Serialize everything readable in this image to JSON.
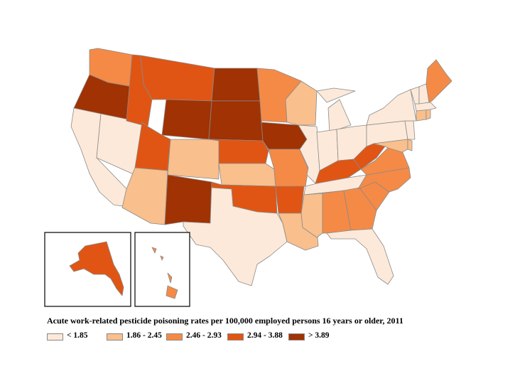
{
  "caption": "Acute work-related pesticide poisoning rates per 100,000 employed persons 16 years or older, 2011",
  "legend": [
    {
      "label": "< 1.85",
      "color": "#fce9d9"
    },
    {
      "label": "1.86 - 2.45",
      "color": "#f9bf8c"
    },
    {
      "label": "2.46 - 2.93",
      "color": "#f58a46"
    },
    {
      "label": "2.94 - 3.88",
      "color": "#e05514"
    },
    {
      "label": "> 3.89",
      "color": "#a03204"
    }
  ],
  "states": {
    "WA": 2,
    "OR": 4,
    "CA": 0,
    "NV": 0,
    "ID": 3,
    "MT": 3,
    "WY": 4,
    "UT": 3,
    "AZ": 1,
    "CO": 1,
    "NM": 4,
    "TX": 0,
    "ND": 4,
    "SD": 4,
    "NE": 3,
    "KS": 1,
    "OK": 3,
    "MN": 2,
    "IA": 4,
    "MO": 2,
    "AR": 3,
    "LA": 1,
    "WI": 1,
    "IL": 0,
    "MI": 0,
    "IN": 0,
    "OH": 0,
    "KY": 3,
    "TN": 0,
    "MS": 1,
    "AL": 2,
    "GA": 2,
    "FL": 0,
    "SC": 2,
    "NC": 2,
    "VA": 2,
    "WV": 3,
    "PA": 0,
    "NY": 0,
    "VT": 0,
    "NH": 0,
    "ME": 2,
    "MA": 0,
    "CT": 1,
    "RI": 1,
    "NJ": 0,
    "DE": 1,
    "MD": 1,
    "AK": 3,
    "HI": 2
  }
}
